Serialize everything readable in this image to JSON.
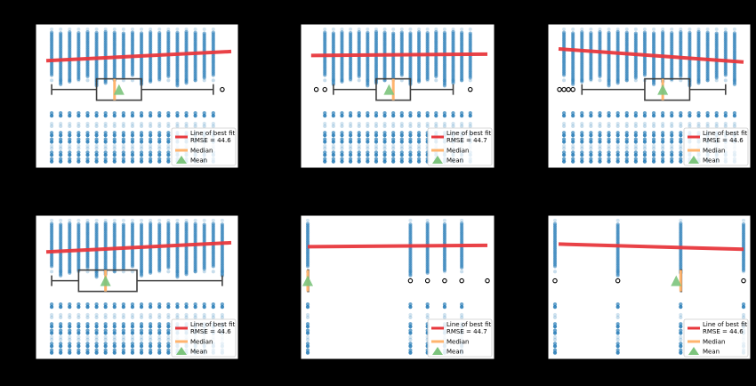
{
  "colors": {
    "figure_bg": "#000000",
    "axes_bg": "#ffffff",
    "points": "#1f77b4",
    "fit_line": "#e8383d",
    "median": "#ffb46e",
    "mean": "#7cc47c",
    "box": "#404040"
  },
  "legend": {
    "fit_label": "Line of best fit",
    "median_label": "Median",
    "mean_label": "Mean"
  },
  "chart_data": [
    {
      "id": "panel-1",
      "type": "scatter",
      "title": "",
      "xlabel": "",
      "ylabel": "",
      "x_range": [
        0,
        21
      ],
      "y_range": [
        -5,
        105
      ],
      "x_columns": [
        1,
        2,
        3,
        4,
        5,
        6,
        7,
        8,
        9,
        10,
        11,
        12,
        13,
        14,
        15,
        16,
        17,
        18,
        19
      ],
      "fit_line": {
        "x": [
          0.4,
          21
        ],
        "y": [
          77,
          84
        ]
      },
      "rmse_text": "RMSE = 44.6",
      "box": {
        "y": 55,
        "x_low": 1,
        "q1": 6,
        "median": 8,
        "q3": 11,
        "x_high": 19,
        "mean": 8.5,
        "outliers": [
          20
        ]
      }
    },
    {
      "id": "panel-2",
      "type": "scatter",
      "title": "",
      "xlabel": "",
      "ylabel": "",
      "x_range": [
        0,
        21
      ],
      "y_range": [
        -5,
        105
      ],
      "x_columns": [
        2,
        3,
        4,
        5,
        6,
        7,
        8,
        9,
        10,
        11,
        12,
        13,
        14,
        15,
        16,
        17,
        18,
        19
      ],
      "fit_line": {
        "x": [
          0.4,
          21
        ],
        "y": [
          81,
          82
        ]
      },
      "rmse_text": "RMSE = 44.7",
      "box": {
        "y": 55,
        "x_low": 3,
        "q1": 8,
        "median": 10,
        "q3": 12,
        "x_high": 17,
        "mean": 9.5,
        "outliers": [
          1,
          2,
          19
        ]
      }
    },
    {
      "id": "panel-3",
      "type": "scatter",
      "title": "",
      "xlabel": "",
      "ylabel": "",
      "x_range": [
        0,
        21
      ],
      "y_range": [
        -5,
        105
      ],
      "x_columns": [
        1,
        2,
        3,
        4,
        5,
        6,
        7,
        8,
        9,
        10,
        11,
        12,
        13,
        14,
        15,
        16,
        17,
        18,
        19,
        20
      ],
      "fit_line": {
        "x": [
          0.4,
          21
        ],
        "y": [
          86,
          76
        ]
      },
      "rmse_text": "RMSE = 44.6",
      "box": {
        "y": 55,
        "x_low": 3,
        "q1": 10,
        "median": 12,
        "q3": 15,
        "x_high": 19,
        "mean": 12,
        "outliers": [
          0.5,
          1,
          1.5,
          2
        ]
      }
    },
    {
      "id": "panel-4",
      "type": "scatter",
      "title": "",
      "xlabel": "",
      "ylabel": "",
      "x_range": [
        0,
        21
      ],
      "y_range": [
        -5,
        105
      ],
      "x_columns": [
        1,
        2,
        3,
        4,
        5,
        6,
        7,
        8,
        9,
        10,
        11,
        12,
        13,
        14,
        15,
        16,
        17,
        18,
        19,
        20
      ],
      "fit_line": {
        "x": [
          0.4,
          21
        ],
        "y": [
          77,
          84
        ]
      },
      "rmse_text": "RMSE = 44.6",
      "box": {
        "y": 55,
        "x_low": 1,
        "q1": 4,
        "median": 7,
        "q3": 10.5,
        "x_high": 20,
        "mean": 7,
        "outliers": []
      }
    },
    {
      "id": "panel-5",
      "type": "scatter",
      "title": "",
      "xlabel": "",
      "ylabel": "",
      "x_range": [
        0,
        21
      ],
      "y_range": [
        -5,
        105
      ],
      "x_columns": [
        0,
        12,
        14,
        16,
        18
      ],
      "fit_line": {
        "x": [
          0,
          21
        ],
        "y": [
          81,
          82
        ]
      },
      "rmse_text": "RMSE = 44.7",
      "box": {
        "y": 55,
        "x_low": 0,
        "q1": 0,
        "median": 0,
        "q3": 0,
        "x_high": 0,
        "mean": 0,
        "outliers": [
          12,
          14,
          16,
          18,
          21
        ]
      }
    },
    {
      "id": "panel-6",
      "type": "scatter",
      "title": "",
      "xlabel": "",
      "ylabel": "",
      "x_range": [
        0,
        21
      ],
      "y_range": [
        -5,
        105
      ],
      "x_columns": [
        0,
        7,
        14,
        21
      ],
      "fit_line": {
        "x": [
          0.4,
          21
        ],
        "y": [
          83,
          79
        ]
      },
      "rmse_text": "RMSE = 44.6",
      "box": {
        "y": 55,
        "x_low": 14,
        "q1": 14,
        "median": 14,
        "q3": 14,
        "x_high": 14,
        "mean": 13.5,
        "outliers": [
          0,
          7,
          21
        ]
      }
    }
  ]
}
